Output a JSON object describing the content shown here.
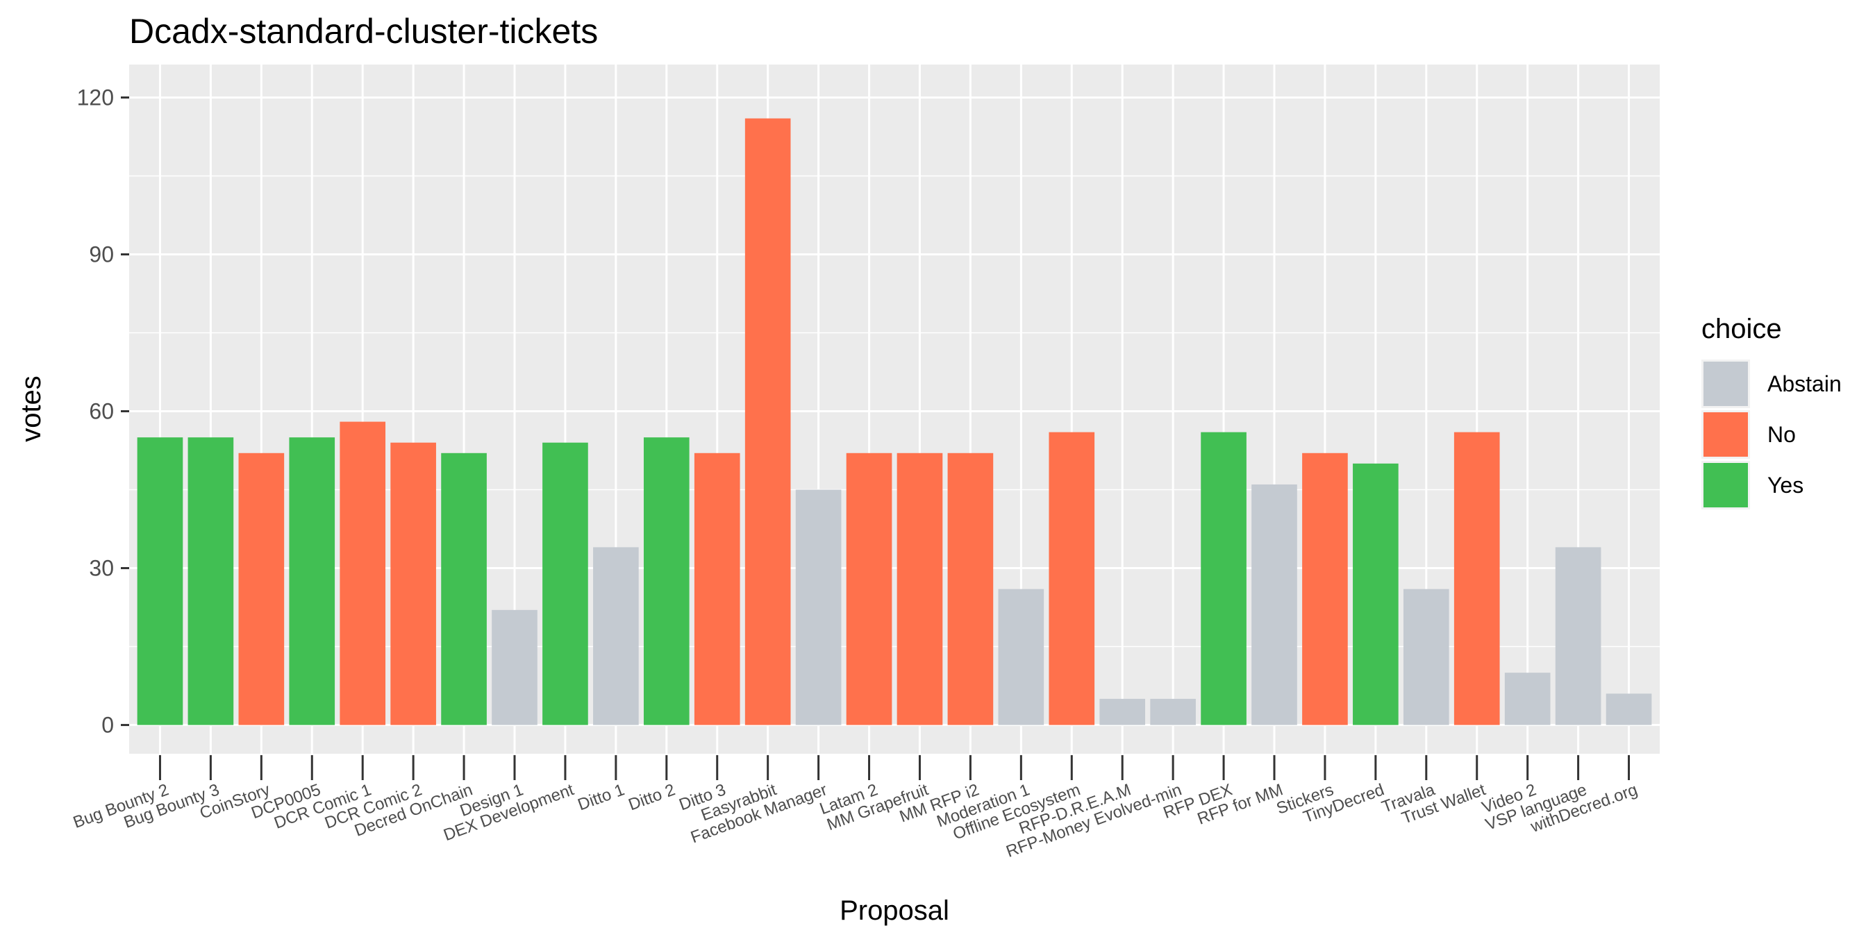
{
  "chart_data": {
    "type": "bar",
    "title": "Dcadx-standard-cluster-tickets",
    "xlabel": "Proposal",
    "ylabel": "votes",
    "ylim": [
      -5.5,
      120
    ],
    "yticks": [
      0,
      30,
      60,
      90,
      120
    ],
    "grid": true,
    "legend": {
      "title": "choice",
      "placement": "right",
      "entries": [
        {
          "label": "Abstain",
          "color": "#c4cad1"
        },
        {
          "label": "No",
          "color": "#ff714c"
        },
        {
          "label": "Yes",
          "color": "#41bf53"
        }
      ]
    },
    "categories": [
      "Bug Bounty 2",
      "Bug Bounty 3",
      "CoinStory",
      "DCP0005",
      "DCR Comic 1",
      "DCR Comic 2",
      "Decred OnChain",
      "Design 1",
      "DEX Development",
      "Ditto 1",
      "Ditto 2",
      "Ditto 3",
      "Easyrabbit",
      "Facebook Manager",
      "Latam 2",
      "MM Grapefruit",
      "MM RFP i2",
      "Moderation 1",
      "Offline Ecosystem",
      "RFP-D.R.E.A.M",
      "RFP-Money Evolved-min",
      "RFP DEX",
      "RFP for MM",
      "Stickers",
      "TinyDecred",
      "Travala",
      "Trust Wallet",
      "Video 2",
      "VSP language",
      "withDecred.org"
    ],
    "values": [
      55,
      55,
      52,
      55,
      58,
      54,
      52,
      22,
      54,
      34,
      55,
      52,
      116,
      45,
      52,
      52,
      52,
      26,
      56,
      5,
      5,
      56,
      46,
      52,
      50,
      26,
      56,
      10,
      34,
      6
    ],
    "choices": [
      "Yes",
      "Yes",
      "No",
      "Yes",
      "No",
      "No",
      "Yes",
      "Abstain",
      "Yes",
      "Abstain",
      "Yes",
      "No",
      "No",
      "Abstain",
      "No",
      "No",
      "No",
      "Abstain",
      "No",
      "Abstain",
      "Abstain",
      "Yes",
      "Abstain",
      "No",
      "Yes",
      "Abstain",
      "No",
      "Abstain",
      "Abstain",
      "Abstain"
    ]
  }
}
